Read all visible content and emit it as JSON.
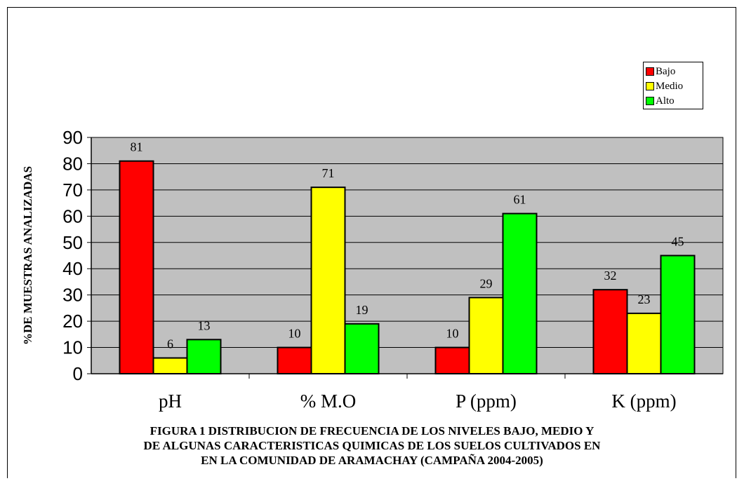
{
  "chart_data": {
    "type": "bar",
    "categories": [
      "pH",
      "% M.O",
      "P (ppm)",
      "K (ppm)"
    ],
    "series": [
      {
        "name": "Bajo",
        "color": "#ff0000",
        "values": [
          81,
          10,
          10,
          32
        ]
      },
      {
        "name": "Medio",
        "color": "#ffff00",
        "values": [
          6,
          71,
          29,
          23
        ]
      },
      {
        "name": "Alto",
        "color": "#00ff00",
        "values": [
          13,
          19,
          61,
          45
        ]
      }
    ],
    "ylabel": "%DE MUESTRAS ANALIZADAS",
    "xlabel": "",
    "ylim": [
      0,
      90
    ],
    "yticks": [
      0,
      10,
      20,
      30,
      40,
      50,
      60,
      70,
      80,
      90
    ],
    "grid": true,
    "legend_position": "top-right",
    "plot_background": "#c0c0c0"
  },
  "caption": {
    "line1": "FIGURA 1  DISTRIBUCION DE FRECUENCIA DE LOS NIVELES BAJO, MEDIO Y",
    "line2": "DE ALGUNAS CARACTERISTICAS QUIMICAS DE LOS SUELOS CULTIVADOS EN",
    "line3": "EN LA COMUNIDAD DE ARAMACHAY (CAMPAÑA 2004-2005)"
  }
}
